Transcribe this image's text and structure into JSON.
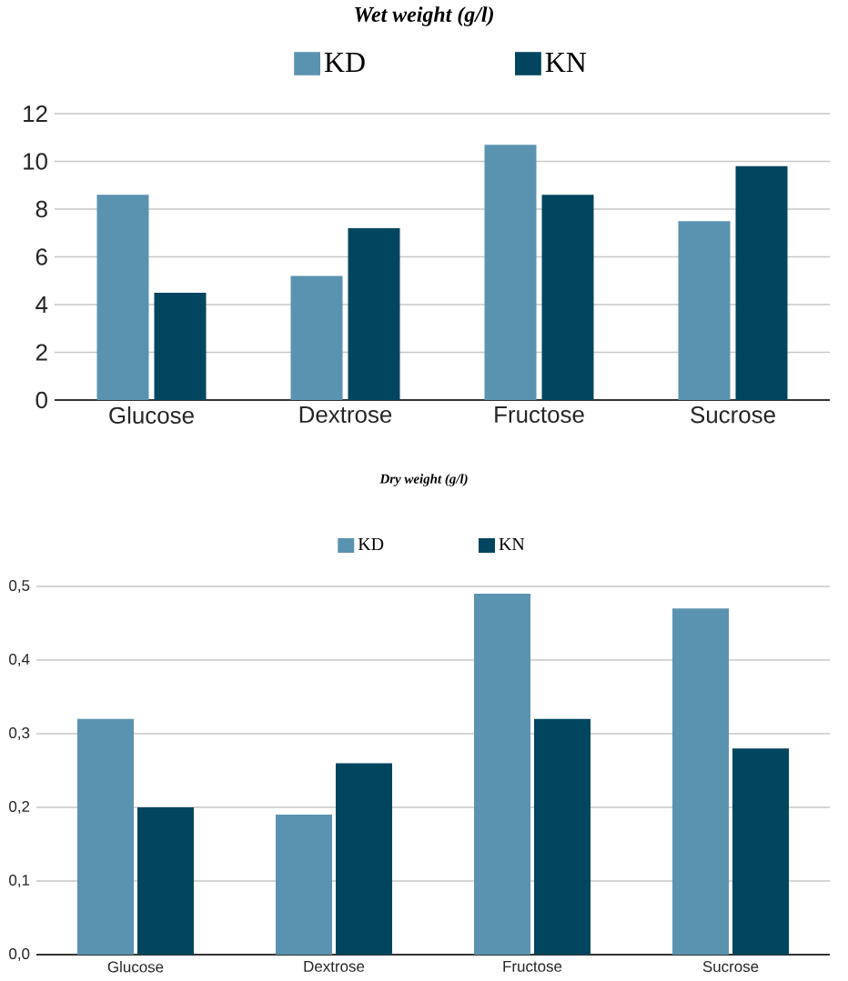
{
  "chart_data": [
    {
      "type": "bar",
      "title": "Wet weight (g/l)",
      "categories": [
        "Glucose",
        "Dextrose",
        "Fructose",
        "Sucrose"
      ],
      "series": [
        {
          "name": "KD",
          "color": "#5a93b0",
          "values": [
            8.6,
            5.2,
            10.7,
            7.5
          ]
        },
        {
          "name": "KN",
          "color": "#02455f",
          "values": [
            4.5,
            7.2,
            8.6,
            9.8
          ]
        }
      ],
      "ylim": [
        0,
        12
      ],
      "yticks": [
        0,
        2,
        4,
        6,
        8,
        10,
        12
      ],
      "grid": "y",
      "legend": "top"
    },
    {
      "type": "bar",
      "title": "Dry weight (g/l)",
      "categories": [
        "Glucose",
        "Dextrose",
        "Fructose",
        "Sucrose"
      ],
      "series": [
        {
          "name": "KD",
          "color": "#5a93b0",
          "values": [
            0.32,
            0.19,
            0.49,
            0.47
          ]
        },
        {
          "name": "KN",
          "color": "#02455f",
          "values": [
            0.2,
            0.26,
            0.32,
            0.28
          ]
        }
      ],
      "ylim": [
        0,
        0.5
      ],
      "yticks": [
        {
          "value": 0,
          "label": "0,0"
        },
        {
          "value": 0.1,
          "label": "0,1"
        },
        {
          "value": 0.2,
          "label": "0,2"
        },
        {
          "value": 0.3,
          "label": "0,3"
        },
        {
          "value": 0.4,
          "label": "0,4"
        },
        {
          "value": 0.5,
          "label": "0,5"
        }
      ],
      "grid": "y",
      "legend": "top"
    }
  ]
}
